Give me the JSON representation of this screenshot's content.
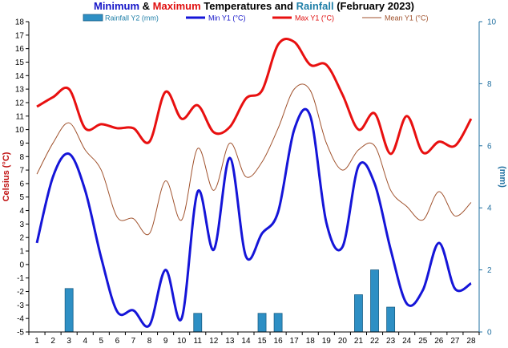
{
  "chart_data": {
    "type": "line",
    "title": {
      "parts": [
        {
          "text": "Minimum",
          "color": "#1515c8"
        },
        {
          "text": " & ",
          "color": "#000000"
        },
        {
          "text": "Maximum",
          "color": "#e01010"
        },
        {
          "text": " Temperatures and ",
          "color": "#000000"
        },
        {
          "text": "Rainfall",
          "color": "#1f7fa8"
        },
        {
          "text": " (February 2023)",
          "color": "#000000"
        }
      ]
    },
    "ylabel": "Celsius (°C)",
    "y2label": "(mm)",
    "ylim": [
      -5,
      18
    ],
    "y2lim": [
      0,
      10
    ],
    "x": [
      1,
      2,
      3,
      4,
      5,
      6,
      7,
      8,
      9,
      10,
      11,
      12,
      13,
      14,
      15,
      16,
      17,
      18,
      19,
      20,
      21,
      22,
      23,
      24,
      25,
      26,
      27,
      28
    ],
    "legend_position": "top",
    "series": [
      {
        "name": "Rainfall Y2 (mm)",
        "axis": "y2",
        "kind": "bar",
        "color": "#2e8fc4",
        "label_color": "#1f7fa8",
        "values": [
          0,
          0,
          1.4,
          0,
          0,
          0,
          0,
          0,
          0,
          0,
          0.6,
          0,
          0,
          0,
          0.6,
          0.6,
          0,
          0,
          0,
          0,
          1.2,
          2.0,
          0.8,
          0,
          0,
          0,
          0,
          0
        ]
      },
      {
        "name": "Min Y1 (°C)",
        "axis": "y",
        "kind": "line",
        "color": "#1515d8",
        "width": 3,
        "label_color": "#1515c8",
        "values": [
          1.6,
          6.5,
          8.2,
          5.5,
          0.5,
          -3.5,
          -3.4,
          -4.5,
          -0.4,
          -4.0,
          5.4,
          1.1,
          7.9,
          0.6,
          2.3,
          3.9,
          10.0,
          11.0,
          3.1,
          1.3,
          7.3,
          6.0,
          1.1,
          -2.9,
          -1.9,
          1.6,
          -1.8,
          -1.4
        ]
      },
      {
        "name": "Max Y1 (°C)",
        "axis": "y",
        "kind": "line",
        "color": "#e81010",
        "width": 3,
        "label_color": "#e01010",
        "values": [
          11.7,
          12.4,
          13.0,
          10.1,
          10.4,
          10.1,
          10.1,
          9.1,
          12.8,
          10.8,
          11.8,
          9.8,
          10.2,
          12.3,
          12.9,
          16.3,
          16.5,
          14.8,
          14.8,
          12.6,
          10.0,
          11.2,
          8.2,
          11.0,
          8.3,
          9.1,
          8.8,
          10.8
        ]
      },
      {
        "name": "Mean Y1 (°C)",
        "axis": "y",
        "kind": "line",
        "color": "#a0522d",
        "width": 1,
        "label_color": "#a0522d",
        "values": [
          6.7,
          9.0,
          10.5,
          8.5,
          7.0,
          3.5,
          3.4,
          2.3,
          6.2,
          3.3,
          8.6,
          5.5,
          9.0,
          6.5,
          7.6,
          10.1,
          13.0,
          12.9,
          9.0,
          7.0,
          8.5,
          8.8,
          5.5,
          4.3,
          3.3,
          5.4,
          3.6,
          4.6
        ]
      }
    ],
    "yticks": [
      -5,
      -4,
      -3,
      -2,
      -1,
      0,
      1,
      2,
      3,
      4,
      5,
      6,
      7,
      8,
      9,
      10,
      11,
      12,
      13,
      14,
      15,
      16,
      17,
      18
    ],
    "y2ticks": [
      0,
      2,
      4,
      6,
      8,
      10
    ],
    "xticks": [
      "1",
      "2",
      "3",
      "4",
      "5",
      "6",
      "7",
      "8",
      "9",
      "10",
      "11",
      "12",
      "13",
      "14",
      "15",
      "16",
      "17",
      "18",
      "19",
      "20",
      "21",
      "22",
      "23",
      "24",
      "25",
      "26",
      "27",
      "28"
    ],
    "grid": false
  }
}
